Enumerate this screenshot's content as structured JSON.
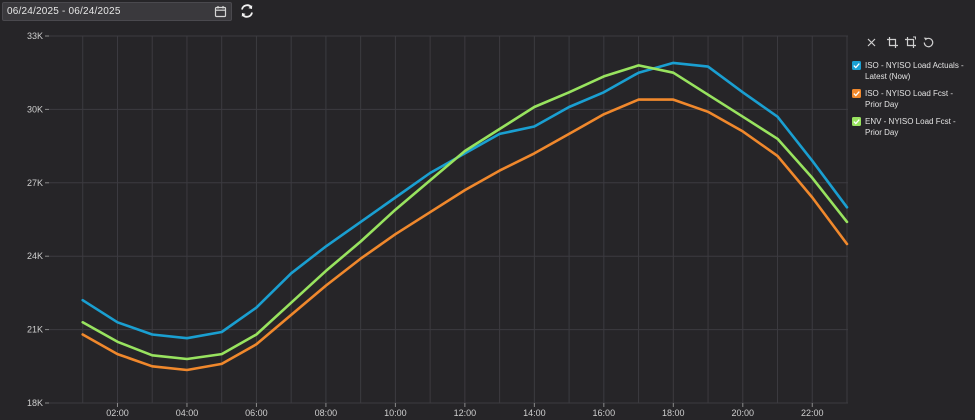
{
  "date_range": {
    "value": "06/24/2025 - 06/24/2025"
  },
  "icons": {
    "calendar": "calendar-icon",
    "refresh": "refresh-icon",
    "close": "close-icon",
    "crop": "crop-icon",
    "crop_alt": "crop-icon",
    "reset": "reset-icon"
  },
  "colors": {
    "background": "#262528",
    "grid": "#3c3b40",
    "series_actuals": "#1a9fd1",
    "series_iso_fcst": "#f0882c",
    "series_env_fcst": "#98e35f"
  },
  "chart_data": {
    "type": "line",
    "x_ticks": [
      "02:00",
      "04:00",
      "06:00",
      "08:00",
      "10:00",
      "12:00",
      "14:00",
      "16:00",
      "18:00",
      "20:00",
      "22:00"
    ],
    "y_ticks": [
      "18K",
      "21K",
      "24K",
      "27K",
      "30K",
      "33K"
    ],
    "ylim": [
      18000,
      33000
    ],
    "xlim_hours": [
      0,
      23
    ],
    "grid": true,
    "legend_position": "right",
    "series": [
      {
        "name": "ISO - NYISO Load Actuals - Latest (Now)",
        "color": "#1a9fd1",
        "x": [
          1,
          2,
          3,
          4,
          5,
          6,
          7,
          8,
          9,
          10,
          11,
          12,
          13,
          14,
          15,
          16,
          17,
          18,
          19,
          20,
          21,
          22,
          23
        ],
        "values": [
          22200,
          21300,
          20800,
          20650,
          20900,
          21900,
          23300,
          24400,
          25400,
          26400,
          27400,
          28200,
          29000,
          29300,
          30100,
          30700,
          31500,
          31900,
          31750,
          30700,
          29700,
          27900,
          26000
        ]
      },
      {
        "name": "ISO - NYISO Load Fcst - Prior Day",
        "color": "#f0882c",
        "x": [
          1,
          2,
          3,
          4,
          5,
          6,
          7,
          8,
          9,
          10,
          11,
          12,
          13,
          14,
          15,
          16,
          17,
          18,
          19,
          20,
          21,
          22,
          23
        ],
        "values": [
          20800,
          20000,
          19500,
          19350,
          19600,
          20400,
          21600,
          22800,
          23900,
          24900,
          25800,
          26700,
          27500,
          28200,
          29000,
          29800,
          30400,
          30400,
          29900,
          29100,
          28100,
          26400,
          24500
        ]
      },
      {
        "name": "ENV - NYISO Load Fcst - Prior Day",
        "color": "#98e35f",
        "x": [
          1,
          2,
          3,
          4,
          5,
          6,
          7,
          8,
          9,
          10,
          11,
          12,
          13,
          14,
          15,
          16,
          17,
          18,
          19,
          20,
          21,
          22,
          23
        ],
        "values": [
          21300,
          20500,
          19950,
          19800,
          20000,
          20800,
          22100,
          23400,
          24600,
          25900,
          27100,
          28300,
          29200,
          30100,
          30700,
          31350,
          31800,
          31500,
          30600,
          29700,
          28800,
          27200,
          25400
        ]
      }
    ]
  }
}
